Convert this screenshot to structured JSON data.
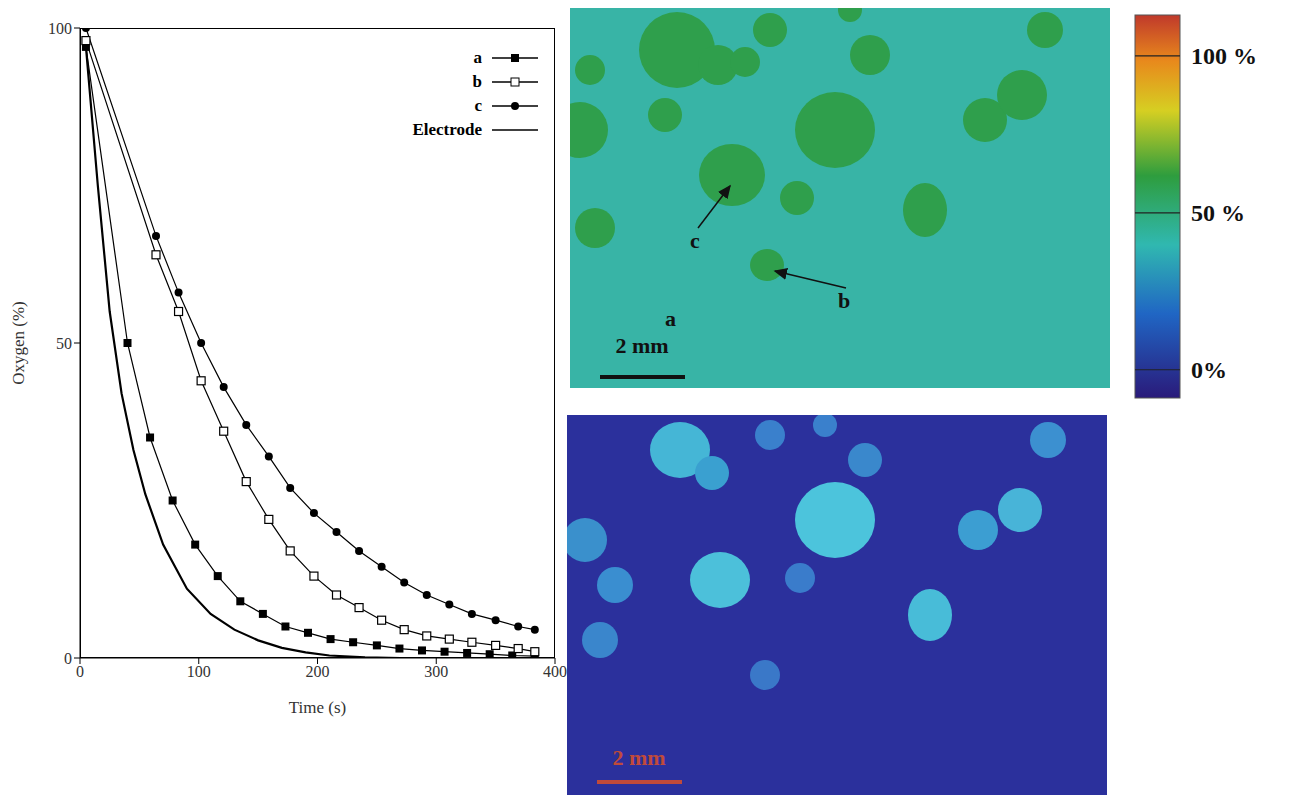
{
  "chart_data": {
    "type": "line",
    "x_label": "Time (s)",
    "y_label": "Oxygen (%)",
    "xlim": [
      0,
      400
    ],
    "xticks": [
      0,
      100,
      200,
      300,
      400
    ],
    "ylim": [
      0,
      100
    ],
    "yticks": [
      0,
      50,
      100
    ],
    "grid": false,
    "legend": "upper right",
    "series": [
      {
        "name": "a",
        "color": "#000000",
        "marker": "square",
        "line_style": "solid",
        "x": [
          5,
          40,
          59,
          78,
          97,
          116,
          135,
          154,
          173,
          192,
          211,
          230,
          250,
          269,
          288,
          307,
          326,
          345,
          364,
          383
        ],
        "values": [
          97,
          50,
          35,
          25,
          18,
          13,
          9,
          7,
          5,
          4,
          3,
          2.5,
          2,
          1.5,
          1.2,
          1,
          0.8,
          0.6,
          0.4,
          0.3
        ]
      },
      {
        "name": "b",
        "color": "#000000",
        "marker": "open_square",
        "line_style": "solid",
        "x": [
          5,
          64,
          83,
          102,
          121,
          140,
          159,
          177,
          197,
          216,
          235,
          254,
          273,
          292,
          311,
          330,
          350,
          369,
          383
        ],
        "values": [
          98,
          64,
          55,
          44,
          36,
          28,
          22,
          17,
          13,
          10,
          8,
          6,
          4.5,
          3.5,
          3,
          2.5,
          2,
          1.5,
          1
        ]
      },
      {
        "name": "c",
        "color": "#000000",
        "marker": "circle",
        "line_style": "solid",
        "x": [
          5,
          64,
          83,
          102,
          121,
          140,
          159,
          177,
          197,
          216,
          235,
          254,
          273,
          292,
          311,
          330,
          350,
          369,
          383
        ],
        "values": [
          100,
          67,
          58,
          50,
          43,
          37,
          32,
          27,
          23,
          20,
          17,
          14.5,
          12,
          10,
          8.5,
          7,
          6,
          5,
          4.5
        ]
      },
      {
        "name": "Electrode",
        "color": "#000000",
        "marker": "none",
        "line_style": "solid",
        "x": [
          5,
          15,
          25,
          35,
          45,
          55,
          70,
          90,
          110,
          130,
          150,
          170,
          190,
          210,
          240,
          270
        ],
        "values": [
          97,
          75,
          55,
          42,
          33,
          26,
          18,
          11,
          7,
          4.5,
          2.8,
          1.6,
          0.9,
          0.4,
          0.1,
          0
        ]
      }
    ]
  },
  "oxygen_maps": [
    {
      "labels": [
        "c",
        "b",
        "a"
      ],
      "scale_bar": "2 mm"
    },
    {
      "scale_bar": "2 mm"
    }
  ],
  "color_bar": {
    "range": [
      -9,
      113
    ],
    "ticks": [
      {
        "value": 100,
        "label": "100 %"
      },
      {
        "value": 50,
        "label": "50 %"
      },
      {
        "value": 0,
        "label": "0%"
      }
    ]
  }
}
